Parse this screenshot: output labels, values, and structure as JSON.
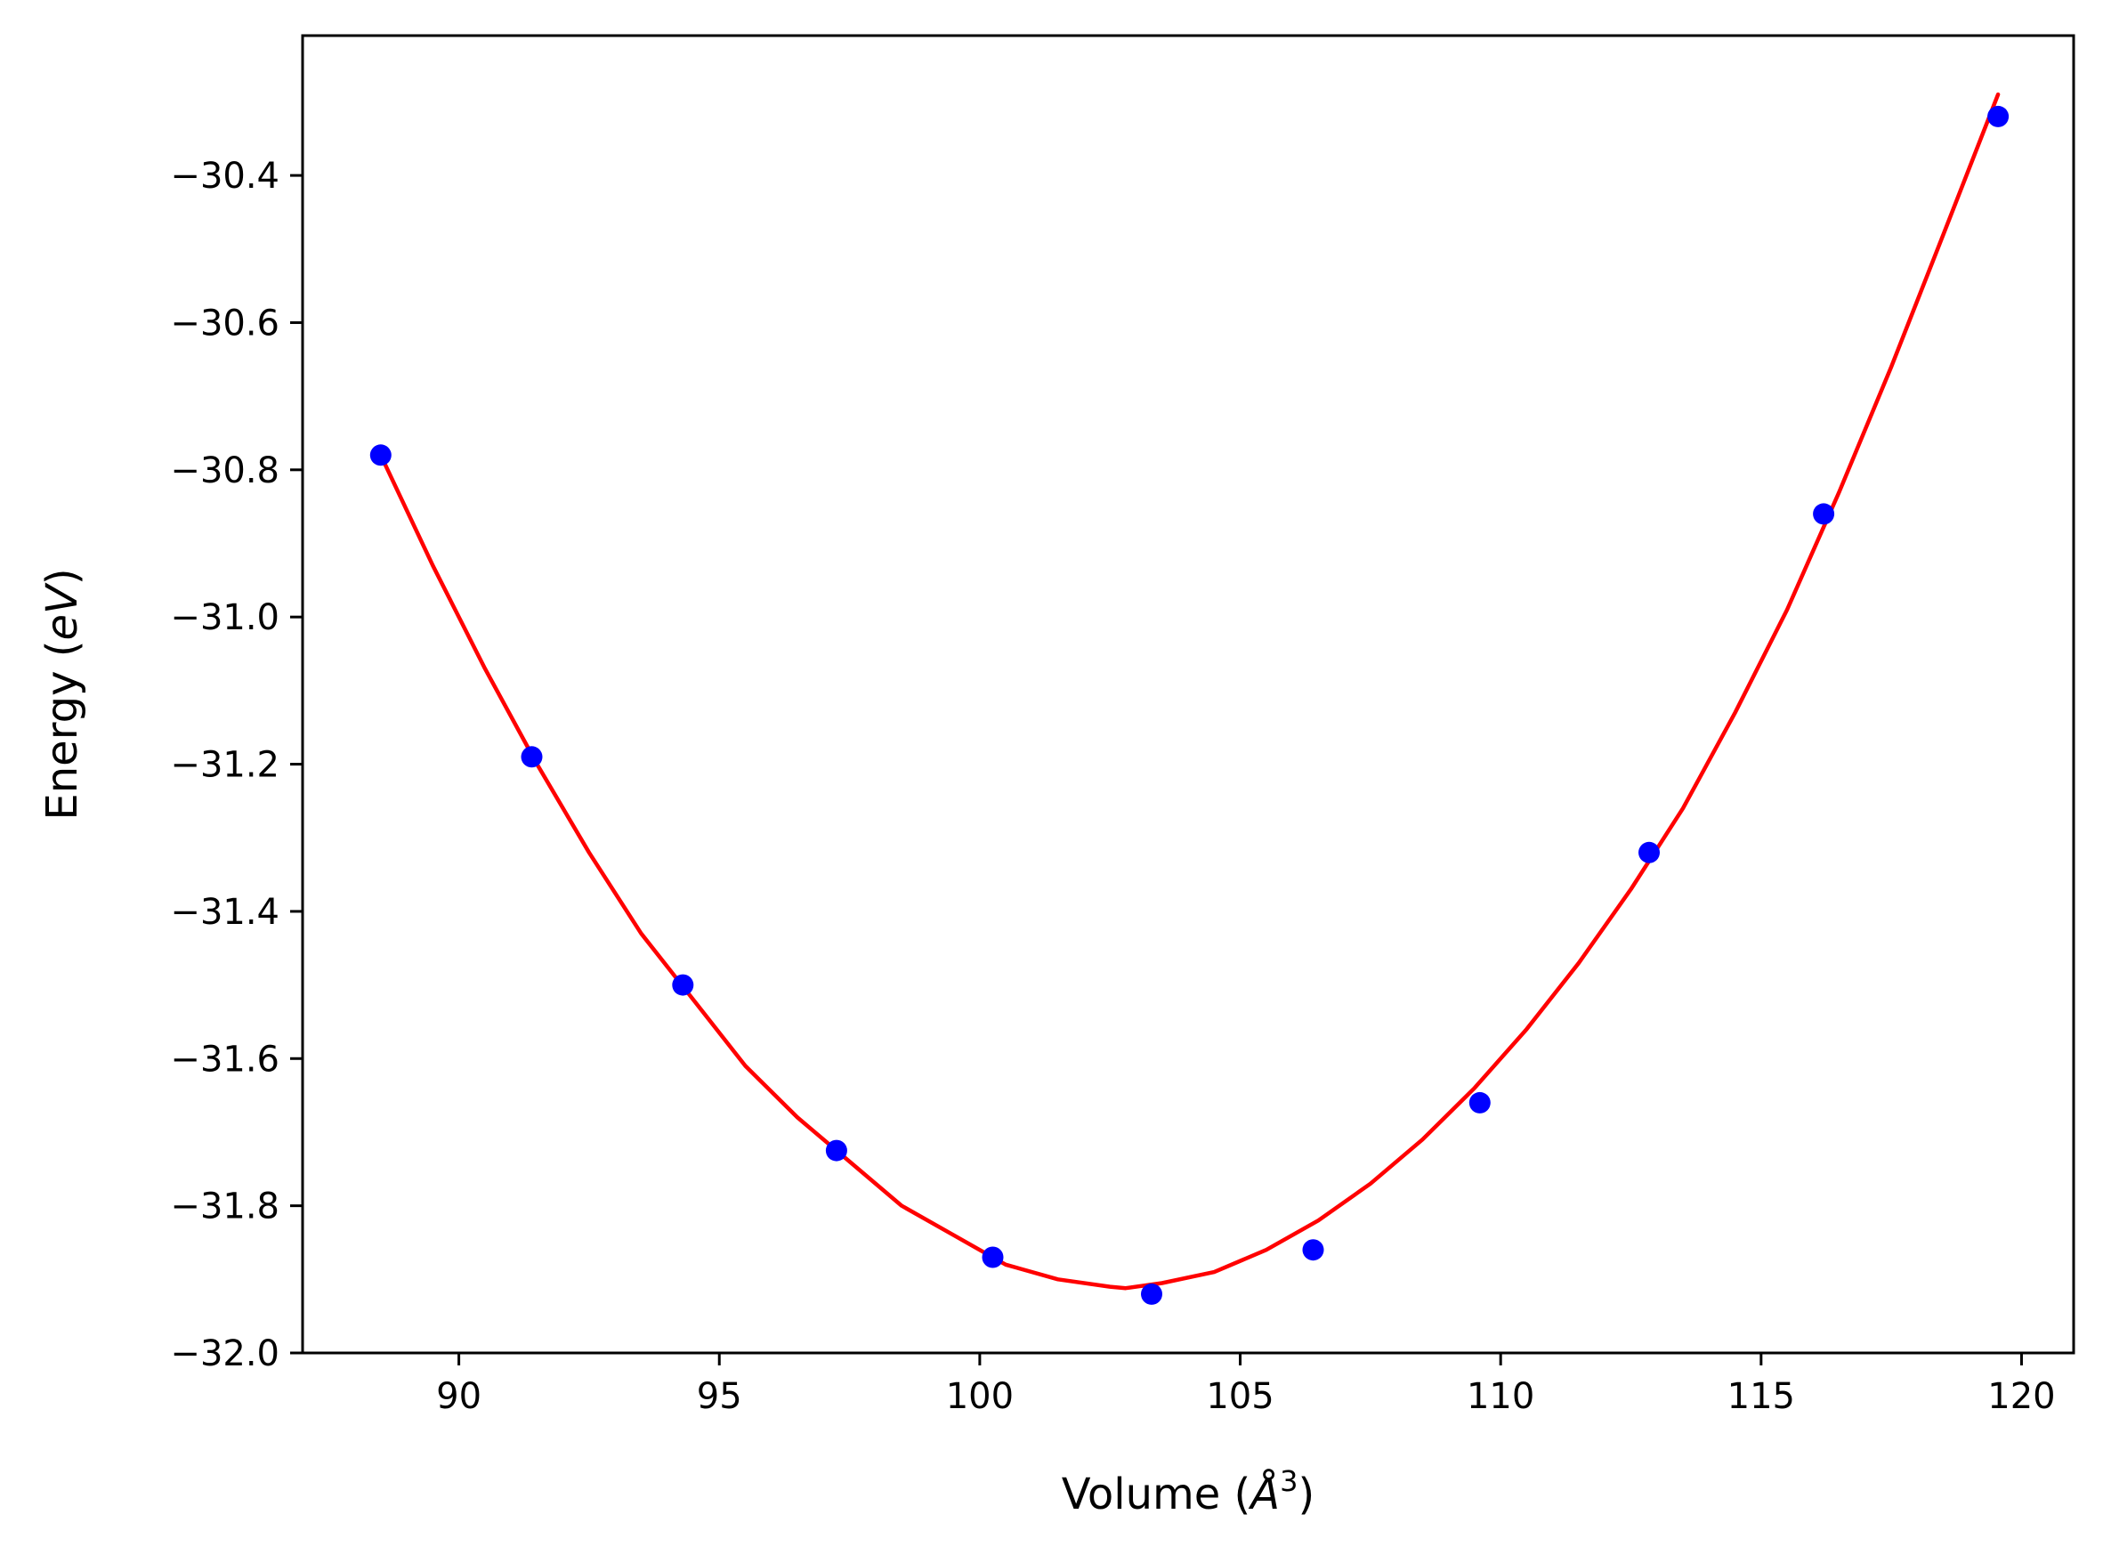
{
  "chart_data": {
    "type": "scatter",
    "title": "",
    "xlabel": "Volume (Å³)",
    "xlabel_parts": [
      "Volume (",
      "Å",
      "3",
      ")"
    ],
    "ylabel": "Energy (eV)",
    "ylabel_parts": [
      "Energy (",
      "eV",
      ")"
    ],
    "xlim": [
      87.0,
      121.0
    ],
    "ylim": [
      -32.0,
      -30.21
    ],
    "xticks": [
      90,
      95,
      100,
      105,
      110,
      115,
      120
    ],
    "xtick_labels": [
      "90",
      "95",
      "100",
      "105",
      "110",
      "115",
      "120"
    ],
    "yticks": [
      -32.0,
      -31.8,
      -31.6,
      -31.4,
      -31.2,
      -31.0,
      -30.8,
      -30.6,
      -30.4
    ],
    "ytick_labels": [
      "−32.0",
      "−31.8",
      "−31.6",
      "−31.4",
      "−31.2",
      "−31.0",
      "−30.8",
      "−30.6",
      "−30.4"
    ],
    "grid": false,
    "legend": false,
    "colors": {
      "points": "#0000ff",
      "fit": "#ff0000",
      "axes": "#000000"
    },
    "series": [
      {
        "kind": "points",
        "x": [
          88.5,
          91.4,
          94.3,
          97.25,
          100.25,
          103.3,
          106.4,
          109.6,
          112.85,
          116.2,
          119.55
        ],
        "y": [
          -30.78,
          -31.19,
          -31.5,
          -31.725,
          -31.87,
          -31.92,
          -31.86,
          -31.66,
          -31.32,
          -30.86,
          -30.32
        ]
      },
      {
        "kind": "fit-line",
        "x": [
          88.5,
          89.5,
          90.5,
          91.5,
          92.5,
          93.5,
          94.5,
          95.5,
          96.5,
          97.5,
          98.5,
          99.5,
          100.5,
          101.5,
          102.5,
          102.8,
          103.5,
          104.5,
          105.5,
          106.5,
          107.5,
          108.5,
          109.5,
          110.5,
          111.5,
          112.5,
          113.5,
          114.5,
          115.5,
          116.5,
          117.5,
          118.5,
          119.55
        ],
        "y": [
          -30.78,
          -30.93,
          -31.07,
          -31.2,
          -31.32,
          -31.43,
          -31.52,
          -31.61,
          -31.68,
          -31.74,
          -31.8,
          -31.84,
          -31.88,
          -31.9,
          -31.91,
          -31.912,
          -31.905,
          -31.89,
          -31.86,
          -31.82,
          -31.77,
          -31.71,
          -31.64,
          -31.56,
          -31.47,
          -31.37,
          -31.26,
          -31.13,
          -30.99,
          -30.83,
          -30.66,
          -30.48,
          -30.29
        ]
      }
    ]
  }
}
